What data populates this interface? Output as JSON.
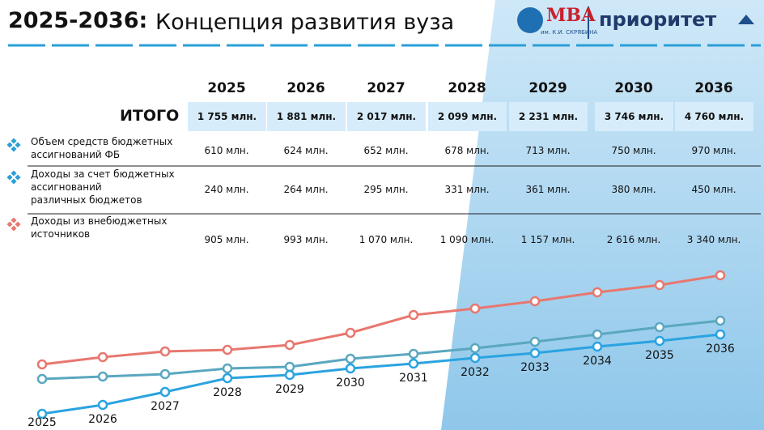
{
  "header": {
    "title_bold": "2025-2036:",
    "title": "Концепция развития вуза",
    "logo_text": "МВА",
    "logo_subtitle": "им. К.И. СКРЯБИНА",
    "brand": "приоритет"
  },
  "table": {
    "years": [
      "2025",
      "2026",
      "2027",
      "2028",
      "2029",
      "2030",
      "2036"
    ],
    "total_label": "ИТОГО",
    "total": [
      "1 755 млн.",
      "1 881 млн.",
      "2 017 млн.",
      "2 099 млн.",
      "2 231 млн.",
      "3 746 млн.",
      "4 760 млн."
    ],
    "rows": [
      {
        "label": "Объем средств бюджетных\nассигнований ФБ",
        "values": [
          "610 млн.",
          "624 млн.",
          "652 млн.",
          "678 млн.",
          "713 млн.",
          "750 млн.",
          "970 млн."
        ]
      },
      {
        "label": "Доходы за счет бюджетных\nассигнований\nразличных бюджетов",
        "values": [
          "240 млн.",
          "264 млн.",
          "295 млн.",
          "331 млн.",
          "361 млн.",
          "380 млн.",
          "450 млн."
        ]
      },
      {
        "label": "Доходы из внебюджетных\nисточников",
        "values": [
          "905 млн.",
          "993 млн.",
          "1 070 млн.",
          "1 090 млн.",
          "1 157 млн.",
          "2 616 млн.",
          "3 340 млн."
        ]
      }
    ]
  },
  "chart_data": {
    "type": "line",
    "categories": [
      "2025",
      "2026",
      "2027",
      "2028",
      "2029",
      "2030",
      "2031",
      "2032",
      "2033",
      "2034",
      "2035",
      "2036"
    ],
    "ylim": [
      0,
      100
    ],
    "series": [
      {
        "color": "#e8776f",
        "values": [
          35,
          39.5,
          43,
          44,
          47,
          54.5,
          65.5,
          69.5,
          74,
          79.5,
          84,
          90
        ]
      },
      {
        "color": "#5aa7c0",
        "values": [
          26,
          27.5,
          29,
          32.5,
          33.5,
          38.5,
          41.5,
          45,
          49,
          53.5,
          58,
          62
        ]
      },
      {
        "color": "#2aa3e0",
        "values": [
          4.5,
          10,
          18,
          26.5,
          28.5,
          32.5,
          35.5,
          39,
          42,
          46,
          49.5,
          53.5
        ]
      }
    ]
  }
}
